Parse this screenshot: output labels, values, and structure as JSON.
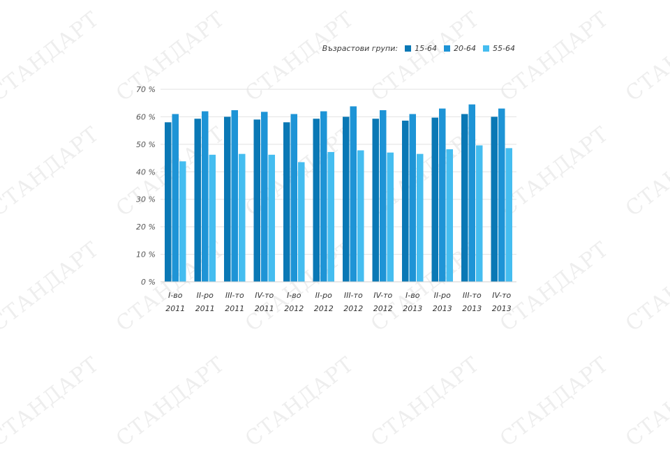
{
  "watermark": {
    "text": "СТАНДАРТ"
  },
  "legend": {
    "title": "Възрастови групи:"
  },
  "chart_data": {
    "type": "bar",
    "categories": [
      [
        "I-во",
        "2011"
      ],
      [
        "II-ро",
        "2011"
      ],
      [
        "III-то",
        "2011"
      ],
      [
        "IV-то",
        "2011"
      ],
      [
        "I-во",
        "2012"
      ],
      [
        "II-ро",
        "2012"
      ],
      [
        "III-то",
        "2012"
      ],
      [
        "IV-то",
        "2012"
      ],
      [
        "I-во",
        "2013"
      ],
      [
        "II-ро",
        "2013"
      ],
      [
        "III-то",
        "2013"
      ],
      [
        "IV-то",
        "2013"
      ]
    ],
    "series": [
      {
        "name": "15-64",
        "color": "#0a78b5",
        "values": [
          58.0,
          59.3,
          60.0,
          59.0,
          58.0,
          59.3,
          60.0,
          59.3,
          58.6,
          59.7,
          61.0,
          60.0
        ]
      },
      {
        "name": "20-64",
        "color": "#1e94d6",
        "values": [
          61.0,
          62.0,
          62.4,
          61.8,
          61.0,
          62.0,
          63.8,
          62.4,
          61.0,
          63.0,
          64.5,
          63.0
        ]
      },
      {
        "name": "55-64",
        "color": "#45bdf0",
        "values": [
          43.8,
          46.2,
          46.5,
          46.2,
          43.5,
          47.2,
          47.8,
          47.0,
          46.5,
          48.2,
          49.6,
          48.6
        ]
      }
    ],
    "yticks": [
      "0 %",
      "10 %",
      "20 %",
      "30 %",
      "40 %",
      "50 %",
      "60 %",
      "70 %"
    ],
    "ylim": [
      0,
      70
    ],
    "grid": true,
    "legend_position": "top-right"
  }
}
